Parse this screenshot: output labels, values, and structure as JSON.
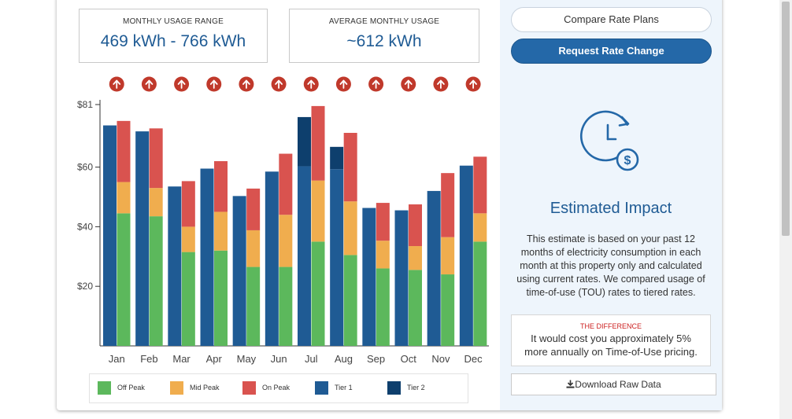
{
  "stats": {
    "range_label": "MONTHLY USAGE RANGE",
    "range_value": "469 kWh - 766 kWh",
    "avg_label": "AVERAGE MONTHLY USAGE",
    "avg_value": "~612 kWh"
  },
  "buttons": {
    "compare": "Compare Rate Plans",
    "request": "Request Rate Change",
    "download": "Download Raw Data"
  },
  "impact": {
    "title": "Estimated Impact",
    "description": "This estimate is based on your past 12 months of electricity consumption in each month at this property only and calculated using current rates. We compared usage of time-of-use (TOU) rates to tiered rates.",
    "difference_label": "THE DIFFERENCE",
    "difference_text": "It would cost you approximately 5% more annually on Time-of-Use pricing."
  },
  "icons": {
    "impact": "clock-dollar-icon",
    "arrow": "arrow-up-circle-icon",
    "download": "download-icon"
  },
  "colors": {
    "off_peak": "#5cb85c",
    "mid_peak": "#f0ad4e",
    "on_peak": "#d9534f",
    "tier1": "#1f5b94",
    "tier2": "#0e3f6d",
    "arrow": "#c0392b",
    "accent": "#2468a8"
  },
  "chart_data": {
    "type": "bar",
    "categories": [
      "Jan",
      "Feb",
      "Mar",
      "Apr",
      "May",
      "Jun",
      "Jul",
      "Aug",
      "Sep",
      "Oct",
      "Nov",
      "Dec"
    ],
    "ylim": [
      0,
      81
    ],
    "yticks": [
      20,
      40,
      60,
      81
    ],
    "ytick_labels": [
      "$20",
      "$40",
      "$60",
      "$81"
    ],
    "grid": false,
    "legend_position": "bottom",
    "tou": {
      "off_peak": [
        44.5,
        43.5,
        31.5,
        32,
        26.5,
        26.5,
        35,
        30.5,
        26,
        25.5,
        24,
        35
      ],
      "mid_peak": [
        10.5,
        9.5,
        8.5,
        13,
        12.3,
        17.5,
        20.5,
        18,
        9.3,
        8,
        12.5,
        9.5
      ],
      "on_peak": [
        20.5,
        20,
        15.3,
        17,
        14,
        20.5,
        25,
        23,
        12.7,
        14,
        21.5,
        19
      ]
    },
    "tiered": {
      "tier1": [
        74,
        72,
        53.5,
        59.5,
        50.3,
        58.5,
        60.3,
        59.3,
        46.3,
        45.5,
        52,
        60.5
      ],
      "tier2": [
        0,
        0,
        0,
        0,
        0,
        0,
        16.5,
        7.5,
        0,
        0,
        0,
        0
      ]
    },
    "series": [
      {
        "name": "Off Peak",
        "key": "off_peak"
      },
      {
        "name": "Mid Peak",
        "key": "mid_peak"
      },
      {
        "name": "On Peak",
        "key": "on_peak"
      },
      {
        "name": "Tier 1",
        "key": "tier1"
      },
      {
        "name": "Tier 2",
        "key": "tier2"
      }
    ]
  }
}
